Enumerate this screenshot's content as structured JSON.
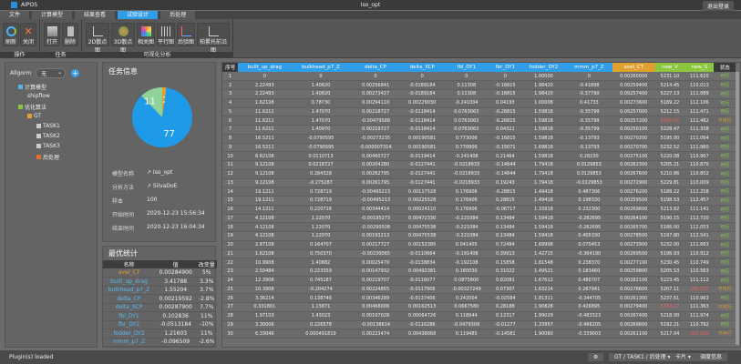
{
  "app": {
    "name": "AIPOS",
    "title": "Iso_opt",
    "user": "退出登录"
  },
  "menu_tabs": [
    {
      "label": "文件",
      "active": false
    },
    {
      "label": "计算模型",
      "active": false
    },
    {
      "label": "结果查看",
      "active": false
    },
    {
      "label": "试验设计",
      "active": true
    },
    {
      "label": "后处理",
      "active": false
    }
  ],
  "ribbon": {
    "groups": [
      {
        "label": "操作",
        "buttons": [
          "刷新",
          "关闭"
        ]
      },
      {
        "label": "任务",
        "buttons": [
          "打开",
          "删除"
        ]
      },
      {
        "label": "可视化分析",
        "buttons": [
          "2D散点图",
          "3D散点图",
          "相关图",
          "平行图",
          "后验图",
          "帕累托前沿图"
        ]
      }
    ]
  },
  "tree": {
    "filter_label": "Allgorm",
    "filter_value": "无",
    "items": [
      {
        "label": "计算模型",
        "level": 0
      },
      {
        "label": "shipflow",
        "level": 1
      },
      {
        "label": "优化算法",
        "level": 0
      },
      {
        "label": "GT",
        "level": 1
      },
      {
        "label": "TASK1",
        "level": 2
      },
      {
        "label": "TASK2",
        "level": 2
      },
      {
        "label": "TASK3",
        "level": 2
      },
      {
        "label": "后处理",
        "level": 2
      }
    ]
  },
  "task_info": {
    "title": "任务信息",
    "pie": {
      "values": [
        77,
        11,
        2
      ],
      "labels": [
        "77",
        "11",
        "2"
      ],
      "colors": [
        "#1e9be8",
        "#8fd39a",
        "#e0a030"
      ]
    },
    "rows": [
      {
        "k": "模型名称",
        "v": "↗ Iso_opt"
      },
      {
        "k": "分析方法",
        "v": "↗ SilvaDoE"
      },
      {
        "k": "样本",
        "v": "100"
      },
      {
        "k": "开始时间",
        "v": "2020-12-23 15:56:34"
      },
      {
        "k": "结束时间",
        "v": "2020-12-23 16:04:34"
      }
    ]
  },
  "stats": {
    "title": "最优统计",
    "headers": [
      "名称",
      "值",
      "改变量"
    ],
    "rows": [
      [
        "avel_CT",
        "0.00284900",
        "5%"
      ],
      [
        "built_up_drag",
        "3.41788",
        "3.3%"
      ],
      [
        "bulkhead_p7_Z",
        "1.55204",
        "3.7%"
      ],
      [
        "delta_CP",
        "0.00219592",
        "-2.8%"
      ],
      [
        "delta_XCP",
        "0.00287900",
        "7.7%"
      ],
      [
        "fbl_DY1",
        "0.102836",
        "11%"
      ],
      [
        "fbr_DY2",
        "-0.0513184",
        "-10%"
      ],
      [
        "fodder_DY2",
        "1.21603",
        "11%"
      ],
      [
        "mmm_p7_Z",
        "-0.096509",
        "-2.6%"
      ]
    ]
  },
  "grid": {
    "headers": [
      "序号",
      "built_up_drag",
      "bulkhead_p7_Z",
      "delta_CP",
      "delta_XCP",
      "fbl_DY1",
      "fbr_DY1",
      "fodder_DY2",
      "mmm_p7_Z",
      "avel_CT",
      "new_V",
      "new_S",
      "状态"
    ],
    "header_colors": [
      "#3a3a3a",
      "#2f9de8",
      "#2f9de8",
      "#2f9de8",
      "#2f9de8",
      "#2f9de8",
      "#2f9de8",
      "#2f9de8",
      "#2f9de8",
      "#e0a030",
      "#8cc63f",
      "#8cc63f",
      "#3a3a3a"
    ],
    "rows": [
      [
        "1",
        "0",
        "0",
        "0",
        "0",
        "0",
        "0",
        "1.00000",
        "0",
        "0.00260000",
        "5231.10",
        "111.620",
        "可行"
      ],
      [
        "2",
        "2.22493",
        "1.40820",
        "0.00256841",
        "-0.0189184",
        "0.11308",
        "-0.16815",
        "1.98420",
        "-0.41898",
        "0.00259400",
        "5214.45",
        "110.013",
        "可行"
      ],
      [
        "3",
        "2.22493",
        "1.40820",
        "0.00273427",
        "-0.0189184",
        "0.11308",
        "-0.16815",
        "1.98420",
        "-0.37790",
        "0.00257400",
        "5227.13",
        "111.089",
        "可行"
      ],
      [
        "4",
        "1.62108",
        "0.78730",
        "0.00294110",
        "0.00229030",
        "-0.241004",
        "0.04193",
        "1.00008",
        "0.41733",
        "0.00273600",
        "5189.22",
        "112.106",
        "可行"
      ],
      [
        "5",
        "11.6211",
        "1.47070",
        "0.00218727",
        "-0.0118414",
        "0.0763063",
        "-0.26815",
        "1.59818",
        "-0.35799",
        "0.00257000",
        "5212.15",
        "111.471",
        "可行"
      ],
      [
        "6",
        "11.6211",
        "1.47070",
        "-0.00479588",
        "-0.0118414",
        "0.0763063",
        "-0.26815",
        "1.59818",
        "-0.35799",
        "0.00257200",
        "5187.07",
        "111.482",
        "不可行"
      ],
      [
        "7",
        "11.6211",
        "1.40970",
        "0.00219727",
        "-0.0118414",
        "0.0763063",
        "0.04321",
        "1.59818",
        "-0.35799",
        "0.00256100",
        "5228.47",
        "111.338",
        "可行"
      ],
      [
        "8",
        "16.5211",
        "-0.0790595",
        "-0.00273235",
        "0.00190581",
        "0.773006",
        "-0.16815",
        "1.59818",
        "-0.13793",
        "0.00270200",
        "5195.00",
        "111.064",
        "可行"
      ],
      [
        "9",
        "16.5211",
        "-0.0790595",
        "-0.000007314",
        "0.00190581",
        "0.770906",
        "-0.15071",
        "1.69818",
        "-0.13793",
        "0.00270700",
        "5232.52",
        "111.960",
        "可行"
      ],
      [
        "10",
        "6.62108",
        "0.0110713",
        "0.00460727",
        "-0.0119414",
        "-0.241408",
        "0.21464",
        "1.59818",
        "0.28230",
        "0.00275100",
        "5220.08",
        "110.967",
        "可行"
      ],
      [
        "11",
        "9.12108",
        "0.0218727",
        "0.00204280",
        "-0.0127441",
        "-0.0218933",
        "-0.14844",
        "1.79418",
        "0.0129853",
        "0.00262300",
        "5205.21",
        "110.870",
        "可行"
      ],
      [
        "12",
        "9.12108",
        "0.284328",
        "0.00262795",
        "-0.0127441",
        "-0.0218933",
        "-0.14844",
        "1.79418",
        "0.0129853",
        "0.00267600",
        "5210.86",
        "110.802",
        "可行"
      ],
      [
        "13",
        "9.12108",
        "-0.275287",
        "0.00261795",
        "-0.0127441",
        "-0.0218933",
        "0.19243",
        "1.79418",
        "-0.0129853",
        "0.00272900",
        "5229.81",
        "110.009",
        "可行"
      ],
      [
        "14",
        "19.1211",
        "0.728719",
        "-0.00495213",
        "0.00117528",
        "0.176906",
        "-0.28815",
        "1.49418",
        "0.487306",
        "0.00276200",
        "5188.22",
        "112.258",
        "可行"
      ],
      [
        "15",
        "19.1211",
        "0.728719",
        "-0.00495213",
        "0.00225528",
        "0.176906",
        "0.28815",
        "1.49418",
        "0.198330",
        "0.00259500",
        "5198.53",
        "112.457",
        "可行"
      ],
      [
        "16",
        "14.1211",
        "0.220718",
        "0.00344414",
        "0.00024110",
        "0.176906",
        "-0.06717",
        "1.33918",
        "0.232300",
        "0.00269600",
        "5213.82",
        "111.141",
        "可行"
      ],
      [
        "17",
        "4.12108",
        "1.22070",
        "-0.00195273",
        "0.00472330",
        "-0.221084",
        "0.13484",
        "1.59418",
        "-0.282695",
        "0.00264100",
        "5190.15",
        "112.720",
        "可行"
      ],
      [
        "18",
        "4.12108",
        "1.22070",
        "-0.00290508",
        "0.00475538",
        "-0.221084",
        "0.13484",
        "1.59418",
        "-0.282695",
        "0.00265700",
        "5186.00",
        "112.053",
        "可行"
      ],
      [
        "19",
        "4.12108",
        "1.22070",
        "0.00193213",
        "0.00475538",
        "-0.221084",
        "0.13484",
        "1.59418",
        "0.405330",
        "0.00278500",
        "5197.80",
        "112.541",
        "可行"
      ],
      [
        "20",
        "2.87108",
        "0.164707",
        "0.00217727",
        "0.00152385",
        "0.041405",
        "0.72484",
        "1.69998",
        "0.070453",
        "0.00273900",
        "5232.00",
        "111.663",
        "可行"
      ],
      [
        "21",
        "1.62108",
        "0.750370",
        "-0.00230065",
        "-0.0110664",
        "-0.191408",
        "0.39913",
        "1.42715",
        "-0.364190",
        "0.00269500",
        "5196.93",
        "110.912",
        "可行"
      ],
      [
        "22",
        "10.9908",
        "1.40882",
        "0.00025470",
        "-0.0138834",
        "-0.192108",
        "0.15858",
        "1.81548",
        "0.238370",
        "0.00277100",
        "5230.45",
        "110.749",
        "可行"
      ],
      [
        "23",
        "2.50484",
        "0.223359",
        "0.00147932",
        "0.00492381",
        "0.160030",
        "0.31022",
        "1.49521",
        "0.183460",
        "0.00259800",
        "5205.53",
        "110.563",
        "可行"
      ],
      [
        "24",
        "12.3908",
        "0.745187",
        "0.00219707",
        "-0.0116077",
        "0.0875800",
        "0.82081",
        "1.67612",
        "0.480707",
        "0.00282100",
        "5223.45",
        "111.112",
        "可行"
      ],
      [
        "25",
        "10.3908",
        "-0.204274",
        "0.00224855",
        "-0.0117906",
        "-0.00327249",
        "0.07307",
        "1.63214",
        "0.267941",
        "0.00276600",
        "5207.11",
        "105.233",
        "不可行"
      ],
      [
        "26",
        "3.36214",
        "0.138746",
        "0.00346289",
        "-0.0137406",
        "0.242004",
        "-0.02584",
        "1.81311",
        "-0.344705",
        "0.00261300",
        "5237.61",
        "110.963",
        "可行"
      ],
      [
        "27",
        "0.331801",
        "1.15871",
        "0.00468006",
        "0.00162513",
        "0.0667580",
        "0.28188",
        "1.90828",
        "0.426895",
        "0.00279400",
        "5184.27",
        "111.363",
        "不可行"
      ],
      [
        "28",
        "1.97103",
        "1.43023",
        "0.00197028",
        "0.00064726",
        "0.118944",
        "0.12317",
        "1.99029",
        "-0.483323",
        "0.00267400",
        "5218.00",
        "111.974",
        "可行"
      ],
      [
        "29",
        "3.30006",
        "0.226578",
        "-0.00138614",
        "-0.0116286",
        "-0.0479309",
        "-0.01277",
        "1.33957",
        "-0.466205",
        "0.00269600",
        "5192.21",
        "110.792",
        "可行"
      ],
      [
        "30",
        "6.33046",
        "0.000491819",
        "0.00223474",
        "0.00438068",
        "0.119485",
        "-0.14581",
        "1.90080",
        "-0.339003",
        "0.00261100",
        "5217.04",
        "102.300",
        "不可行"
      ]
    ],
    "red_cells": {
      "6": [
        10
      ],
      "25": [
        11
      ],
      "27": [
        10
      ],
      "30": [
        11
      ]
    },
    "ok_color": "#8cd44a",
    "bad_color": "#e0a030",
    "red_color": "#f06060"
  },
  "status_bar": {
    "message": "Plugin(s) loaded",
    "buttons": [
      "⚙",
      "GT / TASK1 / 后处理 ▾",
      "卡片 ▾",
      "调度信息"
    ]
  }
}
